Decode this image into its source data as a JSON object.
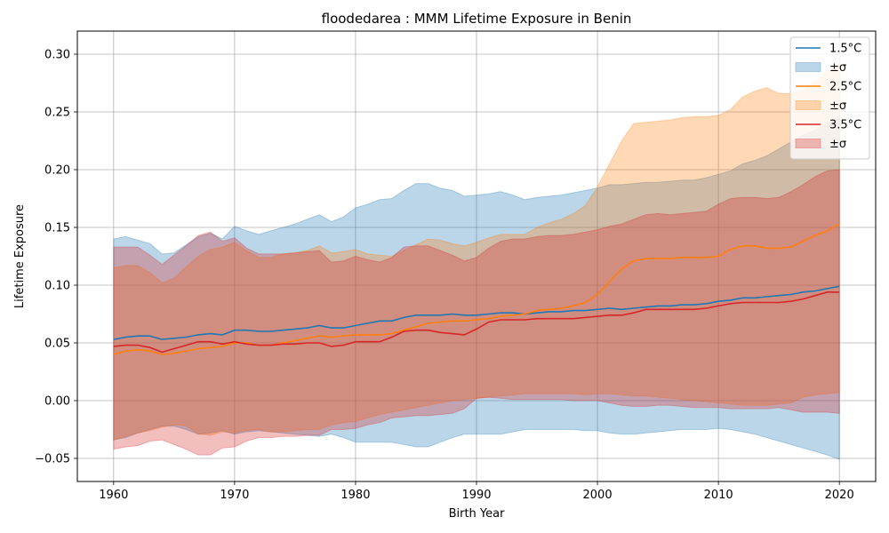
{
  "chart_data": {
    "type": "line",
    "title": "floodedarea : MMM Lifetime Exposure in Benin",
    "xlabel": "Birth Year",
    "ylabel": "Lifetime Exposure",
    "xlim": [
      1957,
      2023
    ],
    "ylim": [
      -0.07,
      0.32
    ],
    "xticks": [
      1960,
      1970,
      1980,
      1990,
      2000,
      2010,
      2020
    ],
    "yticks": [
      -0.05,
      0.0,
      0.05,
      0.1,
      0.15,
      0.2,
      0.25,
      0.3
    ],
    "ytick_labels": [
      "−0.05",
      "0.00",
      "0.05",
      "0.10",
      "0.15",
      "0.20",
      "0.25",
      "0.30"
    ],
    "grid": true,
    "legend_position": "top-right",
    "legend_labels": [
      "1.5°C",
      "±σ",
      "2.5°C",
      "±σ",
      "3.5°C",
      "±σ"
    ],
    "x": [
      1960,
      1961,
      1962,
      1963,
      1964,
      1965,
      1966,
      1967,
      1968,
      1969,
      1970,
      1971,
      1972,
      1973,
      1974,
      1975,
      1976,
      1977,
      1978,
      1979,
      1980,
      1981,
      1982,
      1983,
      1984,
      1985,
      1986,
      1987,
      1988,
      1989,
      1990,
      1991,
      1992,
      1993,
      1994,
      1995,
      1996,
      1997,
      1998,
      1999,
      2000,
      2001,
      2002,
      2003,
      2004,
      2005,
      2006,
      2007,
      2008,
      2009,
      2010,
      2011,
      2012,
      2013,
      2014,
      2015,
      2016,
      2017,
      2018,
      2019,
      2020
    ],
    "series": [
      {
        "name": "1.5°C",
        "color": "#1f77b4",
        "band_color": "#1f77b4",
        "mean": [
          0.053,
          0.055,
          0.056,
          0.056,
          0.053,
          0.054,
          0.055,
          0.057,
          0.058,
          0.057,
          0.061,
          0.061,
          0.06,
          0.06,
          0.061,
          0.062,
          0.063,
          0.065,
          0.063,
          0.063,
          0.065,
          0.067,
          0.069,
          0.069,
          0.072,
          0.074,
          0.074,
          0.074,
          0.075,
          0.074,
          0.074,
          0.075,
          0.076,
          0.076,
          0.075,
          0.076,
          0.077,
          0.077,
          0.078,
          0.078,
          0.079,
          0.08,
          0.079,
          0.08,
          0.081,
          0.082,
          0.082,
          0.083,
          0.083,
          0.084,
          0.086,
          0.087,
          0.089,
          0.089,
          0.09,
          0.091,
          0.092,
          0.094,
          0.095,
          0.097,
          0.099
        ],
        "upper": [
          0.14,
          0.142,
          0.139,
          0.136,
          0.127,
          0.128,
          0.135,
          0.142,
          0.145,
          0.14,
          0.151,
          0.147,
          0.144,
          0.147,
          0.15,
          0.153,
          0.157,
          0.161,
          0.155,
          0.159,
          0.167,
          0.17,
          0.174,
          0.175,
          0.182,
          0.188,
          0.188,
          0.184,
          0.182,
          0.177,
          0.178,
          0.179,
          0.181,
          0.178,
          0.174,
          0.176,
          0.177,
          0.178,
          0.18,
          0.182,
          0.184,
          0.187,
          0.187,
          0.188,
          0.189,
          0.189,
          0.19,
          0.191,
          0.191,
          0.193,
          0.196,
          0.199,
          0.205,
          0.208,
          0.212,
          0.218,
          0.224,
          0.23,
          0.234,
          0.24,
          0.246
        ],
        "lower": [
          -0.034,
          -0.032,
          -0.028,
          -0.025,
          -0.022,
          -0.022,
          -0.025,
          -0.029,
          -0.028,
          -0.026,
          -0.029,
          -0.027,
          -0.026,
          -0.027,
          -0.028,
          -0.029,
          -0.03,
          -0.031,
          -0.029,
          -0.032,
          -0.036,
          -0.036,
          -0.036,
          -0.036,
          -0.038,
          -0.04,
          -0.04,
          -0.036,
          -0.032,
          -0.029,
          -0.029,
          -0.029,
          -0.029,
          -0.027,
          -0.025,
          -0.025,
          -0.025,
          -0.025,
          -0.025,
          -0.026,
          -0.026,
          -0.028,
          -0.029,
          -0.029,
          -0.028,
          -0.027,
          -0.026,
          -0.025,
          -0.025,
          -0.025,
          -0.024,
          -0.025,
          -0.027,
          -0.029,
          -0.032,
          -0.035,
          -0.038,
          -0.041,
          -0.044,
          -0.047,
          -0.051
        ]
      },
      {
        "name": "2.5°C",
        "color": "#ff7f0e",
        "band_color": "#ff7f0e",
        "mean": [
          0.04,
          0.043,
          0.044,
          0.043,
          0.04,
          0.041,
          0.043,
          0.045,
          0.046,
          0.047,
          0.05,
          0.05,
          0.048,
          0.048,
          0.05,
          0.052,
          0.054,
          0.056,
          0.055,
          0.056,
          0.057,
          0.057,
          0.057,
          0.058,
          0.061,
          0.064,
          0.067,
          0.068,
          0.069,
          0.069,
          0.07,
          0.071,
          0.073,
          0.074,
          0.075,
          0.078,
          0.079,
          0.08,
          0.082,
          0.085,
          0.092,
          0.103,
          0.114,
          0.121,
          0.123,
          0.123,
          0.123,
          0.124,
          0.124,
          0.124,
          0.125,
          0.131,
          0.134,
          0.134,
          0.132,
          0.132,
          0.133,
          0.138,
          0.143,
          0.147,
          0.153
        ],
        "upper": [
          0.115,
          0.117,
          0.117,
          0.111,
          0.102,
          0.106,
          0.116,
          0.125,
          0.131,
          0.133,
          0.137,
          0.13,
          0.124,
          0.124,
          0.127,
          0.128,
          0.13,
          0.134,
          0.128,
          0.129,
          0.131,
          0.127,
          0.126,
          0.125,
          0.13,
          0.135,
          0.14,
          0.139,
          0.136,
          0.134,
          0.137,
          0.141,
          0.144,
          0.144,
          0.144,
          0.15,
          0.154,
          0.157,
          0.162,
          0.169,
          0.185,
          0.205,
          0.225,
          0.24,
          0.241,
          0.242,
          0.243,
          0.245,
          0.246,
          0.246,
          0.247,
          0.252,
          0.263,
          0.268,
          0.271,
          0.266,
          0.266,
          0.269,
          0.276,
          0.285,
          0.292
        ],
        "lower": [
          -0.034,
          -0.031,
          -0.028,
          -0.026,
          -0.023,
          -0.021,
          -0.022,
          -0.029,
          -0.03,
          -0.027,
          -0.028,
          -0.026,
          -0.025,
          -0.027,
          -0.027,
          -0.026,
          -0.025,
          -0.025,
          -0.021,
          -0.019,
          -0.018,
          -0.015,
          -0.012,
          -0.01,
          -0.008,
          -0.006,
          -0.004,
          -0.002,
          0.0,
          0.001,
          0.002,
          0.003,
          0.004,
          0.005,
          0.006,
          0.006,
          0.006,
          0.006,
          0.006,
          0.005,
          0.006,
          0.006,
          0.005,
          0.004,
          0.004,
          0.003,
          0.002,
          0.001,
          0.0,
          -0.001,
          -0.002,
          -0.003,
          -0.004,
          -0.004,
          -0.004,
          -0.003,
          -0.002,
          0.003,
          0.005,
          0.006,
          0.007
        ]
      },
      {
        "name": "3.5°C",
        "color": "#d62728",
        "band_color": "#d62728",
        "mean": [
          0.047,
          0.048,
          0.048,
          0.046,
          0.042,
          0.045,
          0.048,
          0.051,
          0.051,
          0.049,
          0.051,
          0.049,
          0.048,
          0.048,
          0.049,
          0.049,
          0.05,
          0.05,
          0.047,
          0.048,
          0.051,
          0.051,
          0.051,
          0.055,
          0.06,
          0.061,
          0.061,
          0.059,
          0.058,
          0.057,
          0.062,
          0.068,
          0.07,
          0.07,
          0.07,
          0.071,
          0.071,
          0.071,
          0.071,
          0.072,
          0.073,
          0.074,
          0.074,
          0.076,
          0.079,
          0.079,
          0.079,
          0.079,
          0.079,
          0.08,
          0.082,
          0.084,
          0.085,
          0.085,
          0.085,
          0.085,
          0.086,
          0.088,
          0.091,
          0.094,
          0.094
        ],
        "upper": [
          0.133,
          0.133,
          0.133,
          0.126,
          0.118,
          0.126,
          0.134,
          0.143,
          0.146,
          0.138,
          0.141,
          0.132,
          0.127,
          0.127,
          0.127,
          0.128,
          0.129,
          0.13,
          0.12,
          0.121,
          0.125,
          0.122,
          0.12,
          0.124,
          0.133,
          0.134,
          0.134,
          0.13,
          0.126,
          0.121,
          0.124,
          0.132,
          0.138,
          0.14,
          0.14,
          0.142,
          0.143,
          0.143,
          0.144,
          0.146,
          0.148,
          0.151,
          0.153,
          0.157,
          0.161,
          0.162,
          0.161,
          0.162,
          0.163,
          0.164,
          0.17,
          0.175,
          0.176,
          0.176,
          0.175,
          0.176,
          0.181,
          0.187,
          0.194,
          0.199,
          0.2
        ],
        "lower": [
          -0.042,
          -0.04,
          -0.039,
          -0.035,
          -0.034,
          -0.038,
          -0.042,
          -0.047,
          -0.047,
          -0.041,
          -0.04,
          -0.035,
          -0.032,
          -0.032,
          -0.031,
          -0.031,
          -0.03,
          -0.03,
          -0.025,
          -0.025,
          -0.024,
          -0.021,
          -0.019,
          -0.015,
          -0.014,
          -0.013,
          -0.013,
          -0.012,
          -0.011,
          -0.007,
          0.002,
          0.003,
          0.002,
          0.001,
          0.001,
          0.001,
          0.001,
          0.001,
          0.0,
          0.0,
          0.0,
          -0.002,
          -0.004,
          -0.005,
          -0.005,
          -0.004,
          -0.004,
          -0.005,
          -0.006,
          -0.006,
          -0.006,
          -0.007,
          -0.007,
          -0.007,
          -0.007,
          -0.006,
          -0.008,
          -0.01,
          -0.01,
          -0.01,
          -0.011
        ]
      }
    ]
  }
}
